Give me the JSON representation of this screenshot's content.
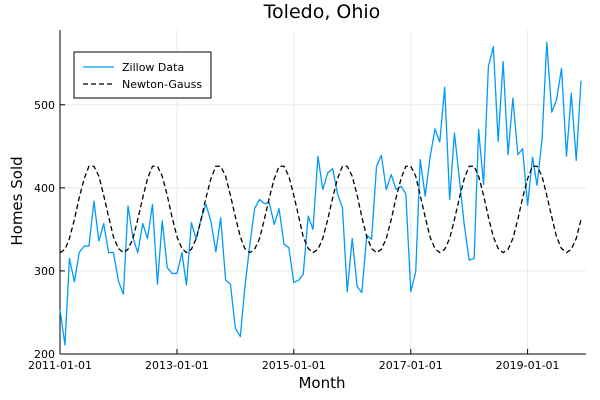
{
  "chart_data": {
    "type": "line",
    "title": "Toledo, Ohio",
    "xlabel": "Month",
    "ylabel": "Homes Sold",
    "x_ticks": [
      "2011-01-01",
      "2013-01-01",
      "2015-01-01",
      "2017-01-01",
      "2019-01-01"
    ],
    "y_ticks": [
      200,
      300,
      400,
      500
    ],
    "xlim": [
      "2011-01-01",
      "2020-01-01"
    ],
    "ylim": [
      200,
      590
    ],
    "grid": true,
    "legend_position": "top-left",
    "series": [
      {
        "name": "Zillow Data",
        "color": "#009af9",
        "style": "solid",
        "x": [
          "2011-01-01",
          "2011-02-01",
          "2011-03-01",
          "2011-04-01",
          "2011-05-01",
          "2011-06-01",
          "2011-07-01",
          "2011-08-01",
          "2011-09-01",
          "2011-10-01",
          "2011-11-01",
          "2011-12-01",
          "2012-01-01",
          "2012-02-01",
          "2012-03-01",
          "2012-04-01",
          "2012-05-01",
          "2012-06-01",
          "2012-07-01",
          "2012-08-01",
          "2012-09-01",
          "2012-10-01",
          "2012-11-01",
          "2012-12-01",
          "2013-01-01",
          "2013-02-01",
          "2013-03-01",
          "2013-04-01",
          "2013-05-01",
          "2013-06-01",
          "2013-07-01",
          "2013-08-01",
          "2013-09-01",
          "2013-10-01",
          "2013-11-01",
          "2013-12-01",
          "2014-01-01",
          "2014-02-01",
          "2014-03-01",
          "2014-04-01",
          "2014-05-01",
          "2014-06-01",
          "2014-07-01",
          "2014-08-01",
          "2014-09-01",
          "2014-10-01",
          "2014-11-01",
          "2014-12-01",
          "2015-01-01",
          "2015-02-01",
          "2015-03-01",
          "2015-04-01",
          "2015-05-01",
          "2015-06-01",
          "2015-07-01",
          "2015-08-01",
          "2015-09-01",
          "2015-10-01",
          "2015-11-01",
          "2015-12-01",
          "2016-01-01",
          "2016-02-01",
          "2016-03-01",
          "2016-04-01",
          "2016-05-01",
          "2016-06-01",
          "2016-07-01",
          "2016-08-01",
          "2016-09-01",
          "2016-10-01",
          "2016-11-01",
          "2016-12-01",
          "2017-01-01",
          "2017-02-01",
          "2017-03-01",
          "2017-04-01",
          "2017-05-01",
          "2017-06-01",
          "2017-07-01",
          "2017-08-01",
          "2017-09-01",
          "2017-10-01",
          "2017-11-01",
          "2017-12-01",
          "2018-01-01",
          "2018-02-01",
          "2018-03-01",
          "2018-04-01",
          "2018-05-01",
          "2018-06-01",
          "2018-07-01",
          "2018-08-01",
          "2018-09-01",
          "2018-10-01",
          "2018-11-01",
          "2018-12-01",
          "2019-01-01",
          "2019-02-01",
          "2019-03-01",
          "2019-04-01",
          "2019-05-01",
          "2019-06-01",
          "2019-07-01",
          "2019-08-01",
          "2019-09-01",
          "2019-10-01",
          "2019-11-01",
          "2019-12-01"
        ],
        "values": [
          253,
          211,
          315,
          287,
          322,
          330,
          330,
          384,
          336,
          357,
          322,
          322,
          288,
          272,
          378,
          340,
          322,
          357,
          339,
          380,
          284,
          360,
          304,
          297,
          297,
          322,
          283,
          358,
          338,
          363,
          380,
          360,
          323,
          364,
          289,
          284,
          231,
          221,
          280,
          331,
          375,
          386,
          381,
          382,
          356,
          375,
          332,
          328,
          286,
          289,
          296,
          366,
          350,
          438,
          398,
          418,
          423,
          393,
          376,
          275,
          339,
          281,
          274,
          343,
          338,
          426,
          439,
          398,
          416,
          398,
          402,
          393,
          275,
          299,
          434,
          390,
          436,
          471,
          455,
          521,
          386,
          466,
          410,
          356,
          313,
          315,
          470,
          404,
          546,
          570,
          456,
          552,
          440,
          508,
          440,
          447,
          379,
          437,
          403,
          458,
          575,
          491,
          506,
          544,
          438,
          514,
          433,
          529
        ]
      },
      {
        "name": "Newton-Gauss",
        "color": "#000000",
        "style": "dashed",
        "x": [
          "2011-01-01",
          "2011-02-01",
          "2011-03-01",
          "2011-04-01",
          "2011-05-01",
          "2011-06-01",
          "2011-07-01",
          "2011-08-01",
          "2011-09-01",
          "2011-10-01",
          "2011-11-01",
          "2011-12-01",
          "2012-01-01",
          "2012-02-01",
          "2012-03-01",
          "2012-04-01",
          "2012-05-01",
          "2012-06-01",
          "2012-07-01",
          "2012-08-01",
          "2012-09-01",
          "2012-10-01",
          "2012-11-01",
          "2012-12-01",
          "2013-01-01",
          "2013-02-01",
          "2013-03-01",
          "2013-04-01",
          "2013-05-01",
          "2013-06-01",
          "2013-07-01",
          "2013-08-01",
          "2013-09-01",
          "2013-10-01",
          "2013-11-01",
          "2013-12-01",
          "2014-01-01",
          "2014-02-01",
          "2014-03-01",
          "2014-04-01",
          "2014-05-01",
          "2014-06-01",
          "2014-07-01",
          "2014-08-01",
          "2014-09-01",
          "2014-10-01",
          "2014-11-01",
          "2014-12-01",
          "2015-01-01",
          "2015-02-01",
          "2015-03-01",
          "2015-04-01",
          "2015-05-01",
          "2015-06-01",
          "2015-07-01",
          "2015-08-01",
          "2015-09-01",
          "2015-10-01",
          "2015-11-01",
          "2015-12-01",
          "2016-01-01",
          "2016-02-01",
          "2016-03-01",
          "2016-04-01",
          "2016-05-01",
          "2016-06-01",
          "2016-07-01",
          "2016-08-01",
          "2016-09-01",
          "2016-10-01",
          "2016-11-01",
          "2016-12-01",
          "2017-01-01",
          "2017-02-01",
          "2017-03-01",
          "2017-04-01",
          "2017-05-01",
          "2017-06-01",
          "2017-07-01",
          "2017-08-01",
          "2017-09-01",
          "2017-10-01",
          "2017-11-01",
          "2017-12-01",
          "2018-01-01",
          "2018-02-01",
          "2018-03-01",
          "2018-04-01",
          "2018-05-01",
          "2018-06-01",
          "2018-07-01",
          "2018-08-01",
          "2018-09-01",
          "2018-10-01",
          "2018-11-01",
          "2018-12-01",
          "2019-01-01",
          "2019-02-01",
          "2019-03-01",
          "2019-04-01",
          "2019-05-01",
          "2019-06-01",
          "2019-07-01",
          "2019-08-01",
          "2019-09-01",
          "2019-10-01",
          "2019-11-01",
          "2019-12-01"
        ],
        "values": [
          322,
          326,
          339,
          362,
          388,
          411,
          426,
          426,
          414,
          391,
          365,
          341,
          327,
          322,
          326,
          339,
          362,
          388,
          411,
          426,
          426,
          414,
          391,
          365,
          341,
          327,
          322,
          326,
          339,
          362,
          388,
          411,
          426,
          426,
          414,
          391,
          365,
          341,
          327,
          322,
          326,
          339,
          362,
          388,
          411,
          426,
          426,
          414,
          391,
          365,
          341,
          327,
          322,
          326,
          339,
          362,
          388,
          411,
          426,
          426,
          414,
          391,
          365,
          341,
          327,
          322,
          326,
          339,
          362,
          388,
          411,
          426,
          426,
          414,
          391,
          365,
          341,
          327,
          322,
          326,
          339,
          362,
          388,
          411,
          426,
          426,
          414,
          391,
          365,
          341,
          327,
          322,
          326,
          339,
          362,
          388,
          411,
          426,
          426,
          414,
          391,
          365,
          341,
          327,
          322,
          326,
          339,
          362
        ]
      }
    ]
  }
}
